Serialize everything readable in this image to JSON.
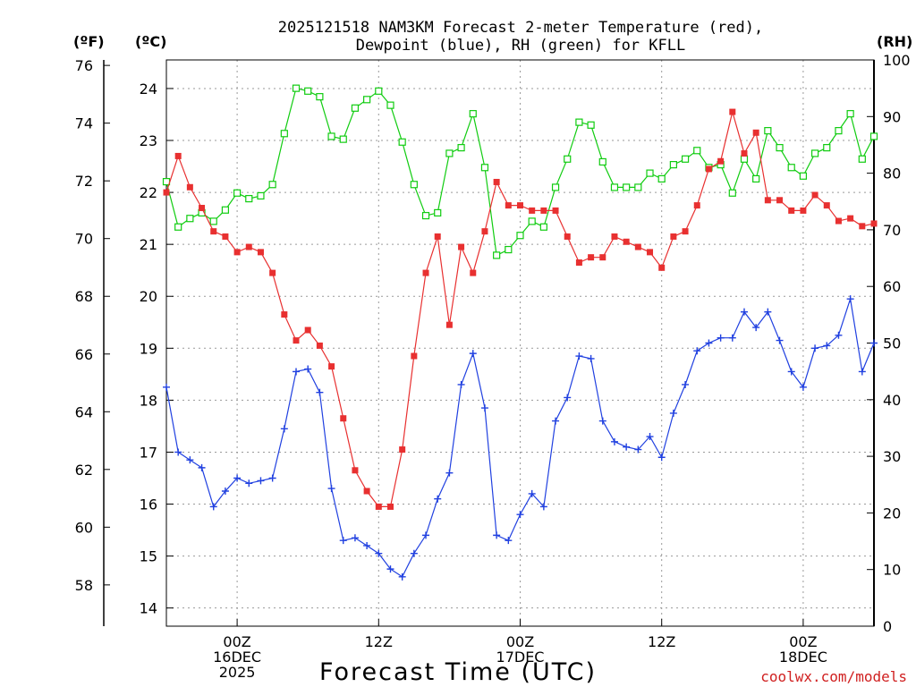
{
  "chart_data": {
    "type": "line",
    "title_line1": "2025121518 NAM3KM Forecast 2-meter Temperature (red),",
    "title_line2": "Dewpoint (blue), RH (green) for KFLL",
    "xlabel": "Forecast Time (UTC)",
    "left_unit_f": "(ºF)",
    "left_unit_c": "(ºC)",
    "right_unit": "(RH)",
    "watermark": "coolwx.com/models",
    "forecast_hours": [
      0,
      1,
      2,
      3,
      4,
      5,
      6,
      7,
      8,
      9,
      10,
      11,
      12,
      13,
      14,
      15,
      16,
      17,
      18,
      19,
      20,
      21,
      22,
      23,
      24,
      25,
      26,
      27,
      28,
      29,
      30,
      31,
      32,
      33,
      34,
      35,
      36,
      37,
      38,
      39,
      40,
      41,
      42,
      43,
      44,
      45,
      46,
      47,
      48,
      49,
      50,
      51,
      52,
      53,
      54,
      55,
      56,
      57,
      58,
      59,
      60
    ],
    "x_ticks": [
      {
        "hour": 6,
        "line1": "00Z",
        "line2": "16DEC",
        "line3": "2025"
      },
      {
        "hour": 18,
        "line1": "12Z",
        "line2": "",
        "line3": ""
      },
      {
        "hour": 30,
        "line1": "00Z",
        "line2": "17DEC",
        "line3": ""
      },
      {
        "hour": 42,
        "line1": "12Z",
        "line2": "",
        "line3": ""
      },
      {
        "hour": 54,
        "line1": "00Z",
        "line2": "18DEC",
        "line3": ""
      }
    ],
    "c_ticks": [
      "14",
      "15",
      "16",
      "17",
      "18",
      "19",
      "20",
      "21",
      "22",
      "23",
      "24"
    ],
    "f_ticks": [
      "58",
      "60",
      "62",
      "64",
      "66",
      "68",
      "70",
      "72",
      "74",
      "76"
    ],
    "rh_ticks": [
      "0",
      "10",
      "20",
      "30",
      "40",
      "50",
      "60",
      "70",
      "80",
      "90",
      "100"
    ],
    "c_range": [
      13.65,
      24.55
    ],
    "rh_range": [
      0,
      100
    ],
    "colors": {
      "temperature": "#e83030",
      "dewpoint": "#2040e0",
      "rh": "#10cc10",
      "watermark": "#d02020",
      "grid": "#9a9a9a"
    },
    "series": [
      {
        "name": "Temperature",
        "unit": "C",
        "values": [
          22.0,
          22.7,
          22.1,
          21.7,
          21.25,
          21.15,
          20.85,
          20.95,
          20.85,
          20.45,
          19.65,
          19.15,
          19.35,
          19.05,
          18.65,
          17.65,
          16.65,
          16.25,
          15.95,
          15.95,
          17.05,
          18.85,
          20.45,
          21.15,
          19.45,
          20.95,
          20.45,
          21.25,
          22.2,
          21.75,
          21.75,
          21.65,
          21.65,
          21.65,
          21.15,
          20.65,
          20.75,
          20.75,
          21.15,
          21.05,
          20.95,
          20.85,
          20.55,
          21.15,
          21.25,
          21.75,
          22.45,
          22.6,
          23.55,
          22.75,
          23.15,
          21.85,
          21.85,
          21.65,
          21.65,
          21.95,
          21.75,
          21.45,
          21.5,
          21.35,
          21.4
        ]
      },
      {
        "name": "Dewpoint",
        "unit": "C",
        "values": [
          18.25,
          17.0,
          16.85,
          16.7,
          15.95,
          16.25,
          16.5,
          16.4,
          16.45,
          16.5,
          17.45,
          18.55,
          18.6,
          18.15,
          16.3,
          15.3,
          15.35,
          15.2,
          15.05,
          14.75,
          14.6,
          15.05,
          15.4,
          16.1,
          16.6,
          18.3,
          18.9,
          17.85,
          15.4,
          15.3,
          15.8,
          16.2,
          15.95,
          17.6,
          18.05,
          18.85,
          18.8,
          17.6,
          17.2,
          17.1,
          17.05,
          17.3,
          16.9,
          17.75,
          18.3,
          18.95,
          19.1,
          19.2,
          19.2,
          19.7,
          19.4,
          19.7,
          19.15,
          18.55,
          18.25,
          19.0,
          19.05,
          19.25,
          19.95,
          18.55,
          19.1
        ]
      },
      {
        "name": "RH",
        "unit": "%",
        "values": [
          78.5,
          70.5,
          72.0,
          73.0,
          71.5,
          73.5,
          76.5,
          75.5,
          76.0,
          78.0,
          87.0,
          95.0,
          94.5,
          93.5,
          86.5,
          86.0,
          91.5,
          93.0,
          94.5,
          92.0,
          85.5,
          78.0,
          72.5,
          73.0,
          83.5,
          84.5,
          90.5,
          81.0,
          65.5,
          66.5,
          69.0,
          71.5,
          70.5,
          77.5,
          82.5,
          89.0,
          88.5,
          82.0,
          77.5,
          77.5,
          77.5,
          80.0,
          79.0,
          81.5,
          82.5,
          84.0,
          81.0,
          81.5,
          76.5,
          82.5,
          79.0,
          87.5,
          84.5,
          81.0,
          79.5,
          83.5,
          84.5,
          87.5,
          90.5,
          82.5,
          86.5
        ]
      }
    ]
  }
}
